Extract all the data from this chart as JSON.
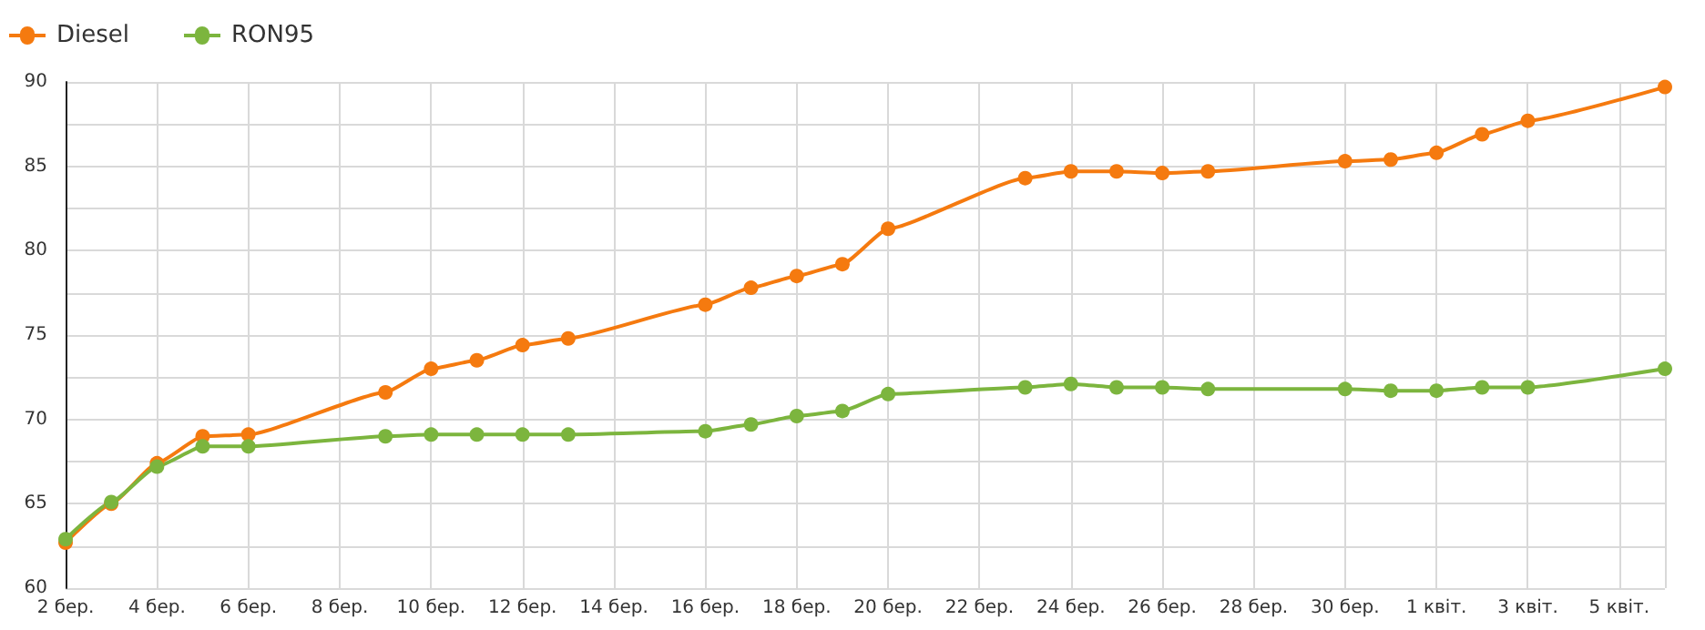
{
  "chart_data": {
    "type": "line",
    "x": [
      "--03-02",
      "--03-03",
      "--03-04",
      "--03-05",
      "--03-06",
      "--03-09",
      "--03-10",
      "--03-11",
      "--03-12",
      "--03-13",
      "--03-16",
      "--03-17",
      "--03-18",
      "--03-19",
      "--03-20",
      "--03-23",
      "--03-24",
      "--03-25",
      "--03-26",
      "--03-27",
      "--03-30",
      "--03-31",
      "--04-01",
      "--04-02",
      "--04-03",
      "--04-06"
    ],
    "series": [
      {
        "name": "Diesel",
        "color": "#f57a0f",
        "values": [
          62.7,
          65.0,
          67.4,
          69.0,
          69.1,
          71.6,
          73.0,
          73.5,
          74.4,
          74.8,
          76.8,
          77.8,
          78.5,
          79.2,
          81.3,
          84.3,
          84.7,
          84.7,
          84.6,
          84.7,
          85.3,
          85.4,
          85.8,
          86.9,
          87.7,
          89.7
        ]
      },
      {
        "name": "RON95",
        "color": "#7cb53e",
        "values": [
          62.9,
          65.1,
          67.2,
          68.4,
          68.4,
          69.0,
          69.1,
          69.1,
          69.1,
          69.1,
          69.3,
          69.7,
          70.2,
          70.5,
          71.5,
          71.9,
          72.1,
          71.9,
          71.9,
          71.8,
          71.8,
          71.7,
          71.7,
          71.9,
          71.9,
          73.0
        ]
      }
    ],
    "xlim": [
      "--03-02",
      "--04-06"
    ],
    "xticks": [
      {
        "value": "--03-02",
        "label": "2 бер."
      },
      {
        "value": "--03-04",
        "label": "4 бер."
      },
      {
        "value": "--03-06",
        "label": "6 бер."
      },
      {
        "value": "--03-08",
        "label": "8 бер."
      },
      {
        "value": "--03-10",
        "label": "10 бер."
      },
      {
        "value": "--03-12",
        "label": "12 бер."
      },
      {
        "value": "--03-14",
        "label": "14 бер."
      },
      {
        "value": "--03-16",
        "label": "16 бер."
      },
      {
        "value": "--03-18",
        "label": "18 бер."
      },
      {
        "value": "--03-20",
        "label": "20 бер."
      },
      {
        "value": "--03-22",
        "label": "22 бер."
      },
      {
        "value": "--03-24",
        "label": "24 бер."
      },
      {
        "value": "--03-26",
        "label": "26 бер."
      },
      {
        "value": "--03-28",
        "label": "28 бер."
      },
      {
        "value": "--03-30",
        "label": "30 бер."
      },
      {
        "value": "--04-01",
        "label": "1 квіт."
      },
      {
        "value": "--04-03",
        "label": "3 квіт."
      },
      {
        "value": "--04-05",
        "label": "5 квіт."
      }
    ],
    "ylim": [
      60,
      90
    ],
    "yticks": [
      60,
      {
        "value": 62.5,
        "label": null
      },
      65,
      {
        "value": 67.5,
        "label": null
      },
      70,
      {
        "value": 72.5,
        "label": null
      },
      75,
      {
        "value": 77.5,
        "label": null
      },
      80,
      {
        "value": 82.5,
        "label": null
      },
      85,
      {
        "value": 87.5,
        "label": null
      },
      90
    ],
    "grid": true,
    "legend": "top left",
    "marker": "circle",
    "line_style": "solid"
  }
}
